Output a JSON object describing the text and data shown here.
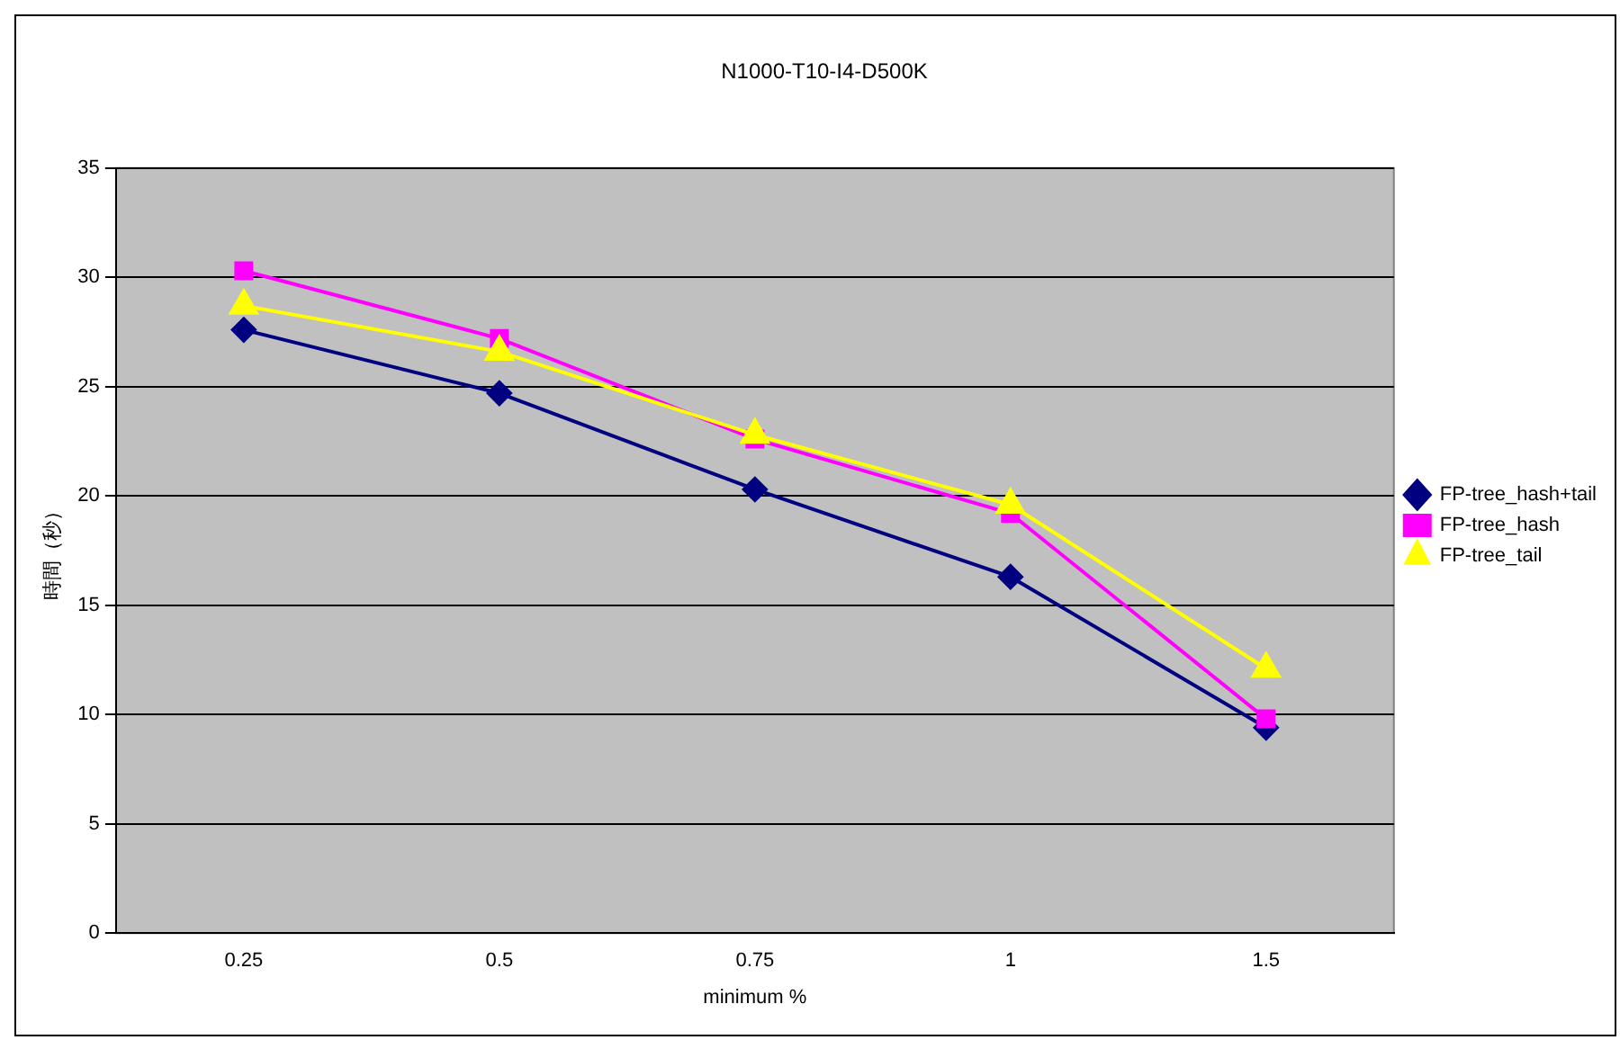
{
  "chart_data": {
    "type": "line",
    "title": "N1000-T10-I4-D500K",
    "xlabel": "minimum %",
    "ylabel": "時間（秒）",
    "categories": [
      "0.25",
      "0.5",
      "0.75",
      "1",
      "1.5"
    ],
    "series": [
      {
        "name": "FP-tree_hash+tail",
        "color": "#000080",
        "marker": "diamond",
        "values": [
          27.6,
          24.7,
          20.3,
          16.3,
          9.4
        ]
      },
      {
        "name": "FP-tree_hash",
        "color": "#ff00ff",
        "marker": "square",
        "values": [
          30.3,
          27.2,
          22.6,
          19.2,
          9.8
        ]
      },
      {
        "name": "FP-tree_tail",
        "color": "#ffff00",
        "marker": "triangle",
        "values": [
          28.7,
          26.6,
          22.8,
          19.6,
          12.1
        ]
      }
    ],
    "ylim": [
      0,
      35
    ],
    "yticks": [
      0,
      5,
      10,
      15,
      20,
      25,
      30,
      35
    ],
    "grid": "y",
    "legend": "right",
    "line_style": "solid"
  }
}
